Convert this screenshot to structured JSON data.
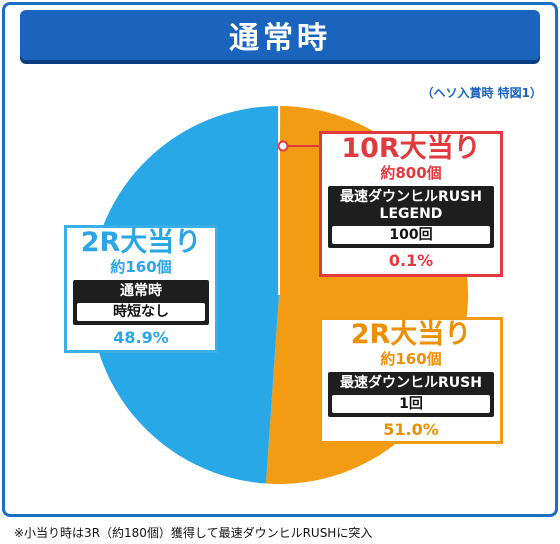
{
  "header": {
    "title": "通常時"
  },
  "note": "（ヘソ入賞時 特図1）",
  "footnote": "※小当り時は3R（約180個）獲得して最速ダウンヒルRUSHに突入",
  "colors": {
    "blue": "#29a8e8",
    "orange": "#f39b12",
    "red": "#e03a3e",
    "frame": "#1a6fc4"
  },
  "chart_data": {
    "type": "pie",
    "title": "通常時",
    "slices": [
      {
        "title": "10R大当り",
        "count": "約800個",
        "mode": "最速ダウンヒルRUSH LEGEND",
        "detail": "100回",
        "value": 0.1,
        "pct_label": "0.1%",
        "color": "#e03a3e"
      },
      {
        "title": "2R大当り",
        "count": "約160個",
        "mode": "最速ダウンヒルRUSH",
        "detail": "1回",
        "value": 51.0,
        "pct_label": "51.0%",
        "color": "#f39b12"
      },
      {
        "title": "2R大当り",
        "count": "約160個",
        "mode": "通常時",
        "detail": "時短なし",
        "value": 48.9,
        "pct_label": "48.9%",
        "color": "#29a8e8"
      }
    ]
  }
}
